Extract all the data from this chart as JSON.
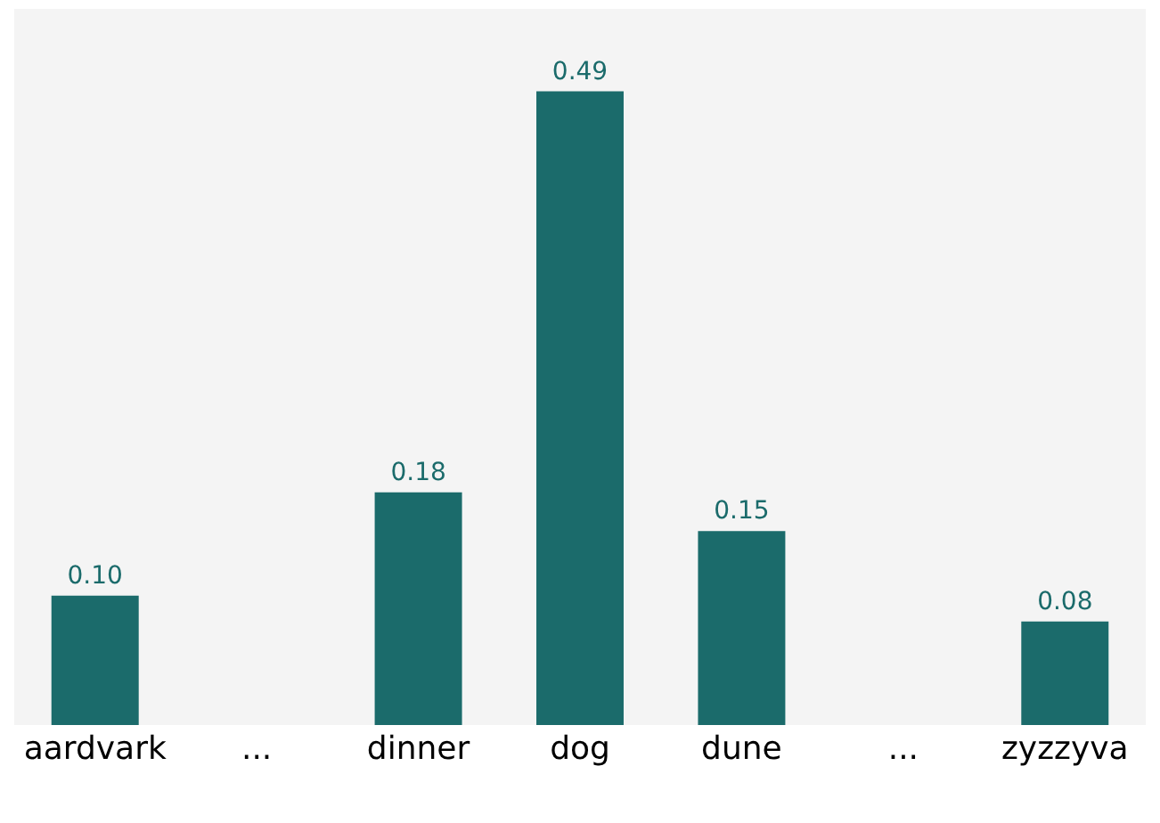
{
  "chart_data": {
    "type": "bar",
    "categories": [
      "aardvark",
      "...",
      "dinner",
      "dog",
      "dune",
      "...",
      "zyzzyva"
    ],
    "values": [
      0.1,
      0,
      0.18,
      0.49,
      0.15,
      0,
      0.08
    ],
    "colors": [
      "#1b6b6b",
      "#e6e6e6",
      "#1b6b6b",
      "#1b6b6b",
      "#1b6b6b",
      "#e6e6e6",
      "#1b6b6b"
    ],
    "value_labels": [
      "0.10",
      null,
      "0.18",
      "0.49",
      "0.15",
      null,
      "0.08"
    ]
  }
}
